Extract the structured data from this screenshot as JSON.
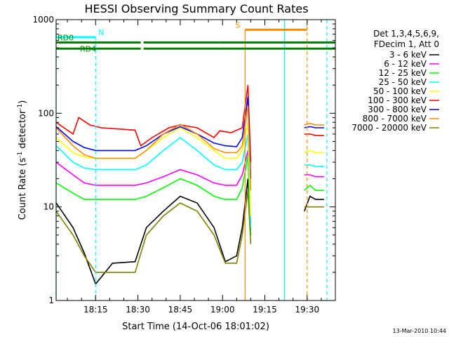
{
  "chart_data": {
    "type": "line",
    "title": "HESSI Observing Summary Count Rates",
    "xlabel": "Start Time (14-Oct-06 18:01:02)",
    "ylabel_text": "Count Rate (s",
    "ylabel_sup": "-1",
    "ylabel_text2": " detector",
    "ylabel_sup2": "-1",
    "ylabel_text3": ")",
    "footer": "13-Mar-2010 10:44",
    "y_scale": "log",
    "ylim": [
      1,
      1000
    ],
    "xlim_min": [
      0,
      99.0
    ],
    "y_ticks": [
      {
        "value": 1,
        "label": "1"
      },
      {
        "value": 10,
        "label": "10"
      },
      {
        "value": 100,
        "label": "100"
      },
      {
        "value": 1000,
        "label": "1000"
      }
    ],
    "x_ticks": [
      {
        "value": 14.0,
        "label": "18:15"
      },
      {
        "value": 29.0,
        "label": "18:30"
      },
      {
        "value": 44.0,
        "label": "18:45"
      },
      {
        "value": 59.0,
        "label": "19:00"
      },
      {
        "value": 74.0,
        "label": "19:15"
      },
      {
        "value": 89.0,
        "label": "19:30"
      }
    ],
    "legend_header": [
      "Det 1,3,4,5,6,9,",
      "FDecim 1, Att 0"
    ],
    "legend_placement": "right",
    "series": [
      {
        "name": "3 - 6 keV",
        "color": "#000000",
        "points": [
          [
            0,
            11
          ],
          [
            6,
            6
          ],
          [
            10,
            3.2
          ],
          [
            14,
            1.5
          ],
          [
            20,
            2.5
          ],
          [
            28,
            2.6
          ],
          [
            32,
            6
          ],
          [
            38,
            9
          ],
          [
            44,
            13
          ],
          [
            50,
            11
          ],
          [
            56,
            6
          ],
          [
            60,
            2.6
          ],
          [
            64,
            3
          ],
          [
            66,
            6
          ],
          [
            68,
            20
          ],
          [
            69,
            5
          ]
        ],
        "points2": [
          [
            88,
            9
          ],
          [
            90,
            13
          ],
          [
            92,
            12
          ],
          [
            95,
            12
          ]
        ]
      },
      {
        "name": "6 - 12 keV",
        "color": "#ff00ff",
        "points": [
          [
            0,
            30
          ],
          [
            6,
            22
          ],
          [
            10,
            18
          ],
          [
            14,
            17
          ],
          [
            20,
            17
          ],
          [
            28,
            17
          ],
          [
            32,
            18
          ],
          [
            38,
            21
          ],
          [
            44,
            25
          ],
          [
            50,
            22
          ],
          [
            56,
            18
          ],
          [
            60,
            17
          ],
          [
            64,
            17
          ],
          [
            66,
            22
          ],
          [
            68,
            40
          ],
          [
            69,
            6
          ]
        ],
        "points2": [
          [
            88,
            22
          ],
          [
            90,
            22
          ],
          [
            92,
            21
          ],
          [
            95,
            21
          ]
        ]
      },
      {
        "name": "12 - 25 keV",
        "color": "#00ff00",
        "points": [
          [
            0,
            18
          ],
          [
            6,
            14
          ],
          [
            10,
            12
          ],
          [
            14,
            12
          ],
          [
            20,
            12
          ],
          [
            28,
            12
          ],
          [
            32,
            13
          ],
          [
            38,
            16
          ],
          [
            44,
            20
          ],
          [
            50,
            17
          ],
          [
            56,
            13
          ],
          [
            60,
            12
          ],
          [
            64,
            12
          ],
          [
            66,
            16
          ],
          [
            68,
            35
          ],
          [
            69,
            5
          ]
        ],
        "points2": [
          [
            88,
            15
          ],
          [
            90,
            17
          ],
          [
            92,
            15
          ],
          [
            95,
            15
          ]
        ]
      },
      {
        "name": "25 - 50 keV",
        "color": "#00ffff",
        "points": [
          [
            0,
            45
          ],
          [
            6,
            30
          ],
          [
            10,
            26
          ],
          [
            14,
            25
          ],
          [
            20,
            25
          ],
          [
            28,
            25
          ],
          [
            32,
            28
          ],
          [
            38,
            40
          ],
          [
            44,
            55
          ],
          [
            50,
            40
          ],
          [
            56,
            28
          ],
          [
            60,
            25
          ],
          [
            64,
            25
          ],
          [
            66,
            30
          ],
          [
            68,
            60
          ],
          [
            69,
            6
          ]
        ],
        "points2": [
          [
            88,
            28
          ],
          [
            90,
            28
          ],
          [
            92,
            27
          ],
          [
            95,
            27
          ]
        ]
      },
      {
        "name": "50 - 100 keV",
        "color": "#ffff00",
        "points": [
          [
            0,
            55
          ],
          [
            6,
            38
          ],
          [
            10,
            34
          ],
          [
            14,
            33
          ],
          [
            20,
            33
          ],
          [
            28,
            33
          ],
          [
            32,
            40
          ],
          [
            38,
            55
          ],
          [
            44,
            70
          ],
          [
            50,
            55
          ],
          [
            56,
            40
          ],
          [
            60,
            33
          ],
          [
            64,
            33
          ],
          [
            66,
            40
          ],
          [
            68,
            80
          ],
          [
            69,
            8
          ]
        ],
        "points2": [
          [
            88,
            38
          ],
          [
            90,
            40
          ],
          [
            92,
            38
          ],
          [
            95,
            38
          ]
        ]
      },
      {
        "name": "100 - 300 keV",
        "color": "#ff0000",
        "points": [
          [
            0,
            80
          ],
          [
            6,
            60
          ],
          [
            8,
            90
          ],
          [
            12,
            75
          ],
          [
            16,
            70
          ],
          [
            22,
            68
          ],
          [
            28,
            66
          ],
          [
            30,
            45
          ],
          [
            34,
            55
          ],
          [
            40,
            70
          ],
          [
            44,
            75
          ],
          [
            50,
            70
          ],
          [
            56,
            55
          ],
          [
            58,
            65
          ],
          [
            62,
            62
          ],
          [
            66,
            70
          ],
          [
            68,
            200
          ],
          [
            69,
            30
          ]
        ],
        "points2": [
          [
            88,
            60
          ],
          [
            90,
            60
          ],
          [
            92,
            58
          ],
          [
            95,
            58
          ]
        ]
      },
      {
        "name": "300 - 800 keV",
        "color": "#0000ff",
        "points": [
          [
            0,
            72
          ],
          [
            6,
            50
          ],
          [
            10,
            43
          ],
          [
            14,
            40
          ],
          [
            20,
            40
          ],
          [
            28,
            40
          ],
          [
            32,
            45
          ],
          [
            38,
            60
          ],
          [
            44,
            72
          ],
          [
            50,
            60
          ],
          [
            56,
            48
          ],
          [
            60,
            45
          ],
          [
            64,
            44
          ],
          [
            66,
            55
          ],
          [
            68,
            150
          ],
          [
            69,
            20
          ]
        ],
        "points2": [
          [
            88,
            70
          ],
          [
            90,
            72
          ],
          [
            92,
            70
          ],
          [
            95,
            70
          ]
        ]
      },
      {
        "name": "800 - 7000 keV",
        "color": "#ff8c00",
        "points": [
          [
            0,
            70
          ],
          [
            6,
            45
          ],
          [
            10,
            36
          ],
          [
            14,
            33
          ],
          [
            20,
            33
          ],
          [
            28,
            33
          ],
          [
            32,
            40
          ],
          [
            38,
            60
          ],
          [
            44,
            76
          ],
          [
            50,
            60
          ],
          [
            56,
            42
          ],
          [
            60,
            38
          ],
          [
            64,
            38
          ],
          [
            66,
            45
          ],
          [
            68,
            120
          ],
          [
            69,
            15
          ]
        ],
        "points2": [
          [
            88,
            75
          ],
          [
            90,
            78
          ],
          [
            92,
            75
          ],
          [
            95,
            75
          ]
        ]
      },
      {
        "name": "7000 - 20000 keV",
        "color": "#808000",
        "points": [
          [
            0,
            9
          ],
          [
            6,
            5
          ],
          [
            10,
            3
          ],
          [
            14,
            2
          ],
          [
            20,
            2
          ],
          [
            28,
            2
          ],
          [
            32,
            5
          ],
          [
            38,
            8
          ],
          [
            44,
            11
          ],
          [
            50,
            9
          ],
          [
            56,
            5
          ],
          [
            60,
            2.5
          ],
          [
            64,
            2.5
          ],
          [
            66,
            5
          ],
          [
            68,
            15
          ],
          [
            69,
            4
          ]
        ],
        "points2": [
          [
            88,
            10
          ],
          [
            90,
            10
          ],
          [
            92,
            10
          ],
          [
            95,
            10
          ]
        ]
      }
    ],
    "flags": [
      {
        "label": "N",
        "color": "#00ffff",
        "y": 650,
        "segments": [
          [
            0,
            14
          ]
        ],
        "vlines": [
          14
        ],
        "vstyle": "dash"
      },
      {
        "label": "S",
        "color": "#ff8c00",
        "y": 780,
        "segments": [
          [
            67,
            89
          ]
        ],
        "vlines": [
          67
        ],
        "vstyle": "solid"
      },
      {
        "label": "RD0",
        "color": "#008000",
        "y": 570,
        "segments": [
          [
            0,
            30
          ],
          [
            31,
            58
          ],
          [
            58,
            89
          ],
          [
            89,
            99
          ]
        ]
      },
      {
        "label": "RD4",
        "color": "#008000",
        "y": 490,
        "segments": [
          [
            0,
            30
          ],
          [
            31,
            58
          ],
          [
            58,
            89
          ],
          [
            89,
            99
          ]
        ]
      }
    ],
    "extra_vlines": [
      {
        "x": 0,
        "color": "#00ffff",
        "style": "solid"
      },
      {
        "x": 81,
        "color": "#00ffff",
        "style": "solid"
      },
      {
        "x": 89,
        "color": "#ff8c00",
        "style": "dash"
      },
      {
        "x": 96,
        "color": "#00ffff",
        "style": "dash"
      }
    ]
  }
}
